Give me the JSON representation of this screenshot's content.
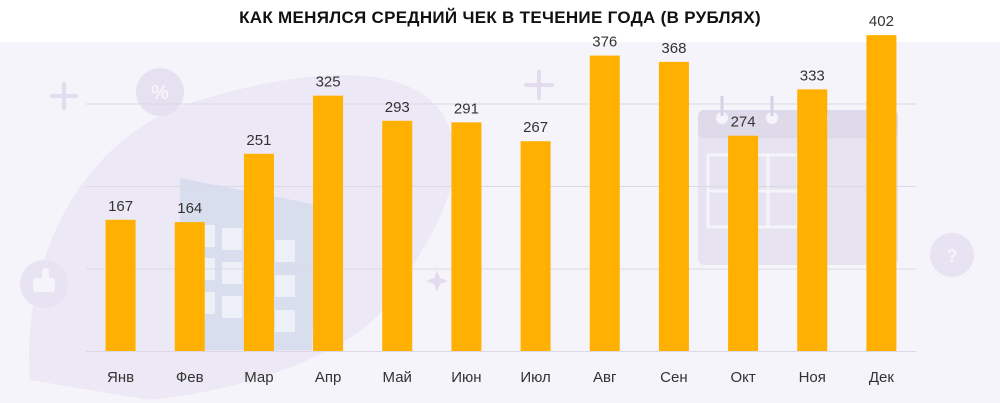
{
  "chart_data": {
    "type": "bar",
    "title": "КАК МЕНЯЛСЯ СРЕДНИЙ ЧЕК В ТЕЧЕНИЕ ГОДА (В РУБЛЯХ)",
    "categories": [
      "Янв",
      "Фев",
      "Мар",
      "Апр",
      "Май",
      "Июн",
      "Июл",
      "Авг",
      "Сен",
      "Окт",
      "Ноя",
      "Дек"
    ],
    "values": [
      167,
      164,
      251,
      325,
      293,
      291,
      267,
      376,
      368,
      274,
      333,
      402
    ],
    "ylim": [
      0,
      420
    ],
    "grid": true,
    "bar_color": "#ffb000",
    "grid_color": "#dcd8e6",
    "background_color": "#f6f4fb"
  }
}
